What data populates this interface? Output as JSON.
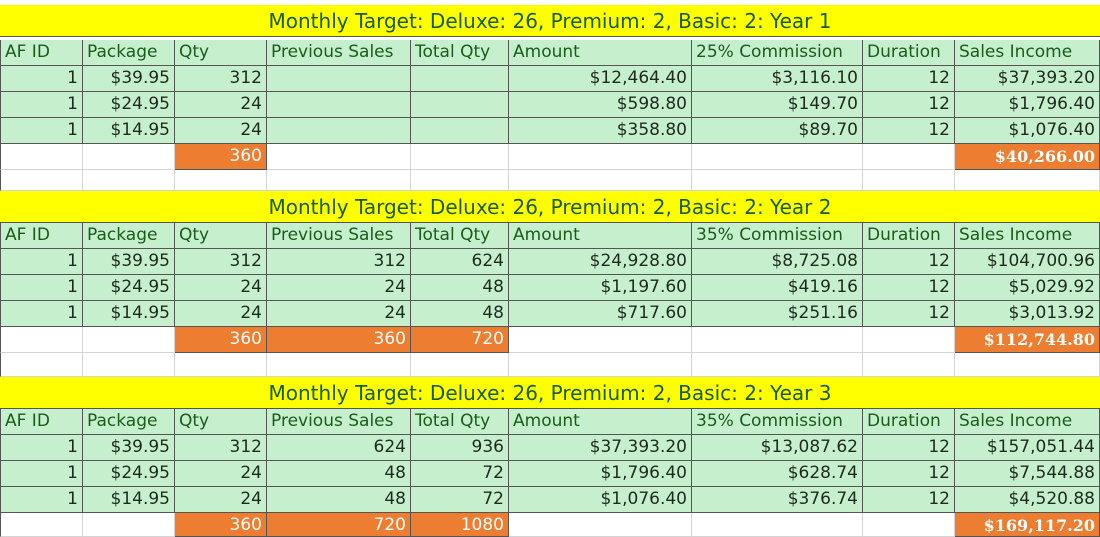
{
  "headers": [
    "AF ID",
    "Package",
    "Qty",
    "Previous Sales",
    "Total Qty",
    "Amount",
    "Commission",
    "Duration",
    "Sales Income"
  ],
  "colors": {
    "title_bg": "#ffff00",
    "cell_bg": "#c6efce",
    "total_bg": "#ed7d31",
    "title_text": "#1a5c1a"
  },
  "sections": [
    {
      "title": "Monthly Target: Deluxe: 26, Premium: 2, Basic: 2: Year 1",
      "commission_header": "25% Commission",
      "rows": [
        [
          "1",
          "$39.95",
          "312",
          "",
          "",
          "$12,464.40",
          "$3,116.10",
          "12",
          "$37,393.20"
        ],
        [
          "1",
          "$24.95",
          "24",
          "",
          "",
          "$598.80",
          "$149.70",
          "12",
          "$1,796.40"
        ],
        [
          "1",
          "$14.95",
          "24",
          "",
          "",
          "$358.80",
          "$89.70",
          "12",
          "$1,076.40"
        ]
      ],
      "totals": {
        "qty": "360",
        "previous_sales": "",
        "total_qty": "",
        "sales_income": "$40,266.00"
      }
    },
    {
      "title": "Monthly Target: Deluxe: 26, Premium: 2, Basic: 2: Year 2",
      "commission_header": "35% Commission",
      "rows": [
        [
          "1",
          "$39.95",
          "312",
          "312",
          "624",
          "$24,928.80",
          "$8,725.08",
          "12",
          "$104,700.96"
        ],
        [
          "1",
          "$24.95",
          "24",
          "24",
          "48",
          "$1,197.60",
          "$419.16",
          "12",
          "$5,029.92"
        ],
        [
          "1",
          "$14.95",
          "24",
          "24",
          "48",
          "$717.60",
          "$251.16",
          "12",
          "$3,013.92"
        ]
      ],
      "totals": {
        "qty": "360",
        "previous_sales": "360",
        "total_qty": "720",
        "sales_income": "$112,744.80"
      }
    },
    {
      "title": "Monthly Target: Deluxe: 26, Premium: 2, Basic: 2: Year 3",
      "commission_header": "35% Commission",
      "rows": [
        [
          "1",
          "$39.95",
          "312",
          "624",
          "936",
          "$37,393.20",
          "$13,087.62",
          "12",
          "$157,051.44"
        ],
        [
          "1",
          "$24.95",
          "24",
          "48",
          "72",
          "$1,796.40",
          "$628.74",
          "12",
          "$7,544.88"
        ],
        [
          "1",
          "$14.95",
          "24",
          "48",
          "72",
          "$1,076.40",
          "$376.74",
          "12",
          "$4,520.88"
        ]
      ],
      "totals": {
        "qty": "360",
        "previous_sales": "720",
        "total_qty": "1080",
        "sales_income": "$169,117.20"
      }
    }
  ]
}
